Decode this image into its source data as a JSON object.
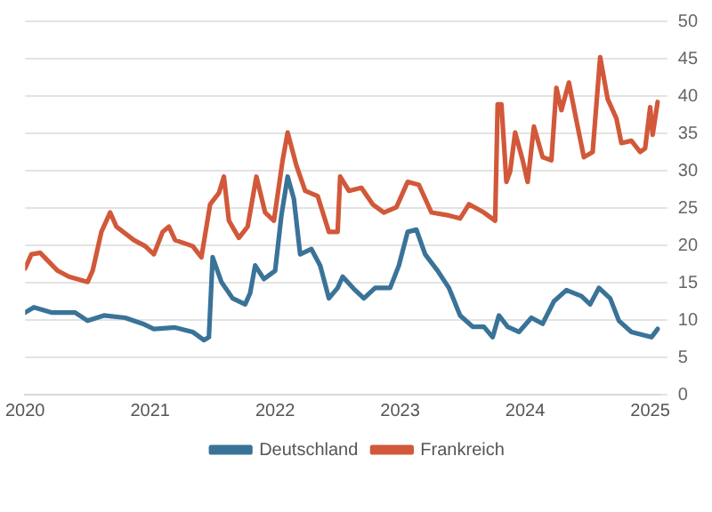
{
  "chart_data": {
    "type": "line",
    "xlim": [
      2020,
      2025.08
    ],
    "xticks": [
      2020,
      2021,
      2022,
      2023,
      2024,
      2025
    ],
    "ylim": [
      0,
      50
    ],
    "yticks": [
      0,
      5,
      10,
      15,
      20,
      25,
      30,
      35,
      40,
      45,
      50
    ],
    "grid": "y",
    "legend": "bottom",
    "marker": "none",
    "line_style": "solid",
    "series": [
      {
        "name": "Deutschland",
        "color": "#3a7398",
        "x": [
          2020,
          2020.07,
          2020.21,
          2020.4,
          2020.5,
          2020.63,
          2020.8,
          2020.94,
          2021.03,
          2021.2,
          2021.34,
          2021.43,
          2021.47,
          2021.5,
          2021.57,
          2021.66,
          2021.76,
          2021.8,
          2021.84,
          2021.91,
          2022.0,
          2022.05,
          2022.1,
          2022.15,
          2022.2,
          2022.29,
          2022.36,
          2022.43,
          2022.5,
          2022.54,
          2022.64,
          2022.71,
          2022.8,
          2022.92,
          2022.99,
          2023.06,
          2023.13,
          2023.2,
          2023.3,
          2023.39,
          2023.48,
          2023.58,
          2023.67,
          2023.74,
          2023.79,
          2023.86,
          2023.95,
          2024.05,
          2024.14,
          2024.23,
          2024.33,
          2024.45,
          2024.52,
          2024.59,
          2024.68,
          2024.75,
          2024.85,
          2024.94,
          2025.01,
          2025.06
        ],
        "values": [
          11.0,
          11.7,
          11.0,
          11.0,
          9.9,
          10.6,
          10.3,
          9.5,
          8.8,
          9.0,
          8.4,
          7.3,
          7.7,
          18.4,
          15.1,
          12.9,
          12.1,
          13.6,
          17.3,
          15.5,
          16.6,
          24,
          29.2,
          26.2,
          18.8,
          19.5,
          17.3,
          12.9,
          14.3,
          15.8,
          14,
          12.9,
          14.3,
          14.3,
          17.3,
          21.8,
          22.1,
          18.8,
          16.6,
          14.3,
          10.6,
          9.1,
          9.1,
          7.7,
          10.6,
          9.1,
          8.4,
          10.3,
          9.5,
          12.5,
          14,
          13.2,
          12.1,
          14.3,
          12.9,
          9.9,
          8.4,
          8,
          7.7,
          8.8
        ]
      },
      {
        "name": "Frankreich",
        "color": "#d2583a",
        "x": [
          2020,
          2020.05,
          2020.12,
          2020.26,
          2020.35,
          2020.5,
          2020.54,
          2020.61,
          2020.68,
          2020.73,
          2020.87,
          2020.96,
          2021.03,
          2021.1,
          2021.15,
          2021.2,
          2021.34,
          2021.41,
          2021.48,
          2021.55,
          2021.59,
          2021.63,
          2021.71,
          2021.78,
          2021.85,
          2021.92,
          2021.99,
          2022.06,
          2022.1,
          2022.17,
          2022.24,
          2022.34,
          2022.43,
          2022.5,
          2022.52,
          2022.59,
          2022.69,
          2022.78,
          2022.87,
          2022.97,
          2023.06,
          2023.15,
          2023.25,
          2023.39,
          2023.48,
          2023.55,
          2023.67,
          2023.76,
          2023.78,
          2023.81,
          2023.85,
          2023.88,
          2023.92,
          2023.98,
          2024.02,
          2024.07,
          2024.14,
          2024.21,
          2024.25,
          2024.29,
          2024.35,
          2024.42,
          2024.47,
          2024.54,
          2024.6,
          2024.66,
          2024.73,
          2024.77,
          2024.85,
          2024.92,
          2024.96,
          2025.0,
          2025.02,
          2025.06
        ],
        "values": [
          16.9,
          18.8,
          19,
          16.6,
          15.8,
          15.1,
          16.6,
          21.8,
          24.4,
          22.5,
          20.7,
          19.9,
          18.8,
          21.8,
          22.5,
          20.7,
          19.9,
          18.4,
          25.5,
          27,
          29.2,
          23.3,
          21,
          22.5,
          29.2,
          24.4,
          23.3,
          31.4,
          35.1,
          30.7,
          27.3,
          26.6,
          21.8,
          21.8,
          29.2,
          27.3,
          27.7,
          25.5,
          24.4,
          25.1,
          28.5,
          28.1,
          24.4,
          24,
          23.6,
          25.5,
          24.4,
          23.3,
          38.9,
          38.9,
          28.5,
          29.9,
          35.1,
          31.4,
          28.5,
          35.9,
          31.8,
          31.4,
          41.1,
          38.1,
          41.8,
          35.9,
          31.8,
          32.5,
          45.2,
          39.6,
          37,
          33.7,
          34,
          32.5,
          33,
          38.5,
          34.8,
          39.2
        ]
      }
    ]
  }
}
